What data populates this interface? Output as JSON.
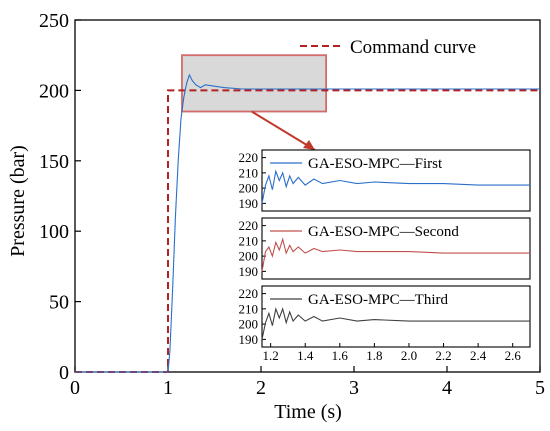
{
  "chart_data": {
    "type": "line",
    "title": "",
    "xlabel": "Time (s)",
    "ylabel": "Pressure (bar)",
    "xlim": [
      0,
      5
    ],
    "ylim": [
      0,
      250
    ],
    "xticks": [
      "0",
      "1",
      "2",
      "3",
      "4",
      "5"
    ],
    "yticks": [
      "0",
      "50",
      "100",
      "150",
      "200",
      "250"
    ],
    "grid": false,
    "legend_position": "top-right",
    "colors": {
      "command": "#b22222",
      "first": "#2a6fc9",
      "second": "#c0504d",
      "third": "#404040",
      "highlight_box_fill": "#d9d9d9",
      "highlight_box_stroke": "#d36b6b",
      "arrow": "#c0392b"
    },
    "series": [
      {
        "name": "Command curve",
        "style": "dashed",
        "x": [
          0,
          1.0,
          1.0,
          5.0
        ],
        "y": [
          0,
          0,
          200,
          200
        ]
      },
      {
        "name": "",
        "style": "solid",
        "x": [
          0,
          1.0,
          1.02,
          1.05,
          1.08,
          1.11,
          1.14,
          1.17,
          1.2,
          1.23,
          1.26,
          1.3,
          1.35,
          1.4,
          1.5,
          1.6,
          1.8,
          2.0,
          2.5,
          3.0,
          4.0,
          5.0
        ],
        "y": [
          0,
          0,
          15,
          60,
          110,
          150,
          180,
          195,
          205,
          211,
          207,
          204,
          202,
          204,
          203,
          202,
          201,
          201,
          201,
          201,
          201,
          201
        ]
      }
    ],
    "insets": [
      {
        "legend": "GA-ESO-MPC—First",
        "color_key": "first",
        "ylim": [
          185,
          225
        ],
        "yticks": [
          "190",
          "200",
          "210",
          "220"
        ],
        "x": [
          1.15,
          1.17,
          1.19,
          1.21,
          1.23,
          1.25,
          1.27,
          1.29,
          1.31,
          1.33,
          1.36,
          1.4,
          1.45,
          1.5,
          1.6,
          1.7,
          1.8,
          2.0,
          2.2,
          2.4,
          2.6,
          2.7
        ],
        "y": [
          190,
          202,
          208,
          199,
          211,
          205,
          210,
          201,
          208,
          203,
          207,
          202,
          206,
          203,
          205,
          203,
          204,
          203,
          203,
          202,
          202,
          202
        ]
      },
      {
        "legend": "GA-ESO-MPC—Second",
        "color_key": "second",
        "ylim": [
          185,
          225
        ],
        "yticks": [
          "190",
          "200",
          "210",
          "220"
        ],
        "x": [
          1.15,
          1.17,
          1.19,
          1.21,
          1.23,
          1.25,
          1.27,
          1.29,
          1.31,
          1.33,
          1.36,
          1.4,
          1.45,
          1.5,
          1.6,
          1.7,
          1.8,
          2.0,
          2.2,
          2.4,
          2.6,
          2.7
        ],
        "y": [
          190,
          203,
          206,
          200,
          209,
          204,
          211,
          202,
          207,
          203,
          206,
          202,
          205,
          203,
          204,
          203,
          203,
          203,
          202,
          202,
          202,
          202
        ]
      },
      {
        "legend": "GA-ESO-MPC—Third",
        "color_key": "third",
        "ylim": [
          185,
          225
        ],
        "yticks": [
          "190",
          "200",
          "210",
          "220"
        ],
        "x": [
          1.15,
          1.17,
          1.19,
          1.21,
          1.23,
          1.25,
          1.27,
          1.29,
          1.31,
          1.33,
          1.36,
          1.4,
          1.45,
          1.5,
          1.6,
          1.7,
          1.8,
          2.0,
          2.2,
          2.4,
          2.6,
          2.7
        ],
        "y": [
          190,
          201,
          207,
          199,
          210,
          204,
          210,
          201,
          208,
          202,
          206,
          202,
          205,
          202,
          204,
          202,
          203,
          202,
          202,
          202,
          202,
          202
        ]
      }
    ],
    "inset_xlim": [
      1.15,
      2.7
    ],
    "inset_xticks": [
      "1.2",
      "1.4",
      "1.6",
      "1.8",
      "2.0",
      "2.2",
      "2.4",
      "2.6"
    ],
    "highlight_region": {
      "x": [
        1.15,
        2.7
      ],
      "y": [
        185,
        225
      ]
    }
  }
}
